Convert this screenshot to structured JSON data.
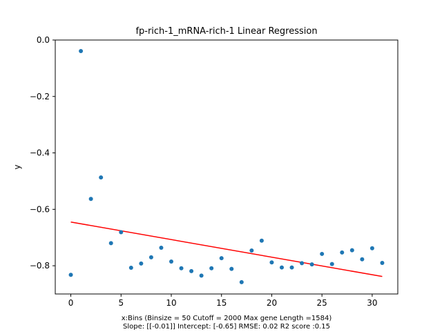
{
  "chart_data": {
    "type": "scatter",
    "title": "fp-rich-1_mRNA-rich-1 Linear Regression",
    "xlabel_lines": [
      "x:Bins  (Binsize = 50 Cutoff = 2000 Max gene Length =1584)",
      "Slope: [[-0.01]] Intercept: [-0.65] RMSE: 0.02 R2 score :0.15"
    ],
    "ylabel": "y",
    "xlim": [
      -1.55,
      32.55
    ],
    "ylim": [
      -0.9,
      0.0
    ],
    "xticks": [
      0,
      5,
      10,
      15,
      20,
      25,
      30
    ],
    "xtick_labels": [
      "0",
      "5",
      "10",
      "15",
      "20",
      "25",
      "30"
    ],
    "yticks": [
      0.0,
      -0.2,
      -0.4,
      -0.6,
      -0.8
    ],
    "ytick_labels": [
      "0.0",
      "−0.2",
      "−0.4",
      "−0.6",
      "−0.8"
    ],
    "grid": false,
    "colors": {
      "points": "#1f77b4",
      "regression_line": "#ff0000"
    },
    "points": {
      "x": [
        0,
        1,
        2,
        3,
        4,
        5,
        6,
        7,
        8,
        9,
        10,
        11,
        12,
        13,
        14,
        15,
        16,
        17,
        18,
        19,
        20,
        21,
        22,
        23,
        24,
        25,
        26,
        27,
        28,
        29,
        30,
        31
      ],
      "y": [
        -0.832,
        -0.039,
        -0.563,
        -0.487,
        -0.72,
        -0.681,
        -0.807,
        -0.792,
        -0.77,
        -0.736,
        -0.785,
        -0.809,
        -0.819,
        -0.835,
        -0.809,
        -0.773,
        -0.811,
        -0.858,
        -0.746,
        -0.711,
        -0.788,
        -0.806,
        -0.806,
        -0.791,
        -0.795,
        -0.758,
        -0.794,
        -0.753,
        -0.745,
        -0.777,
        -0.738,
        -0.79
      ]
    },
    "regression_line": {
      "x": [
        0,
        31
      ],
      "y": [
        -0.645,
        -0.838
      ]
    }
  }
}
